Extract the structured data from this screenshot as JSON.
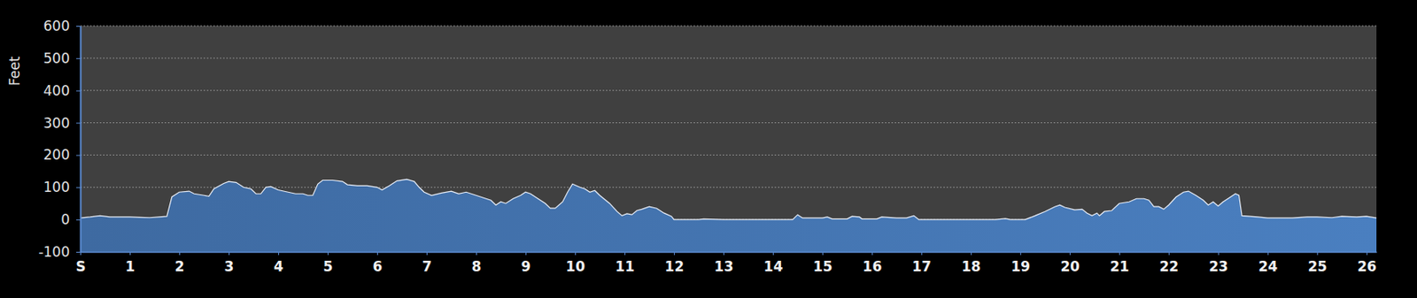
{
  "chart_data": {
    "type": "area",
    "y_label": "Feet",
    "color": "#4a7fc0",
    "grid": true,
    "xlim": [
      0,
      26.2
    ],
    "ylim": [
      -100,
      600
    ],
    "xticks": [
      {
        "value": 0,
        "label": "S"
      },
      1,
      2,
      3,
      4,
      5,
      6,
      7,
      8,
      9,
      10,
      11,
      12,
      13,
      14,
      15,
      16,
      17,
      18,
      19,
      20,
      21,
      22,
      23,
      24,
      25,
      26
    ],
    "yticks": [
      -100,
      0,
      100,
      200,
      300,
      400,
      500,
      600
    ],
    "x": [
      0,
      0.2,
      0.4,
      0.6,
      0.8,
      1.0,
      1.2,
      1.4,
      1.6,
      1.75,
      1.85,
      2.0,
      2.2,
      2.3,
      2.5,
      2.6,
      2.7,
      2.9,
      3.0,
      3.15,
      3.3,
      3.45,
      3.55,
      3.65,
      3.75,
      3.85,
      4.0,
      4.2,
      4.35,
      4.5,
      4.6,
      4.7,
      4.8,
      4.9,
      5.1,
      5.3,
      5.4,
      5.6,
      5.8,
      6.0,
      6.1,
      6.25,
      6.4,
      6.6,
      6.75,
      6.85,
      6.95,
      7.1,
      7.3,
      7.5,
      7.65,
      7.8,
      8.0,
      8.2,
      8.3,
      8.4,
      8.5,
      8.6,
      8.75,
      8.9,
      9.0,
      9.1,
      9.25,
      9.4,
      9.5,
      9.6,
      9.75,
      9.85,
      9.95,
      10.1,
      10.2,
      10.3,
      10.4,
      10.5,
      10.7,
      10.85,
      10.95,
      11.05,
      11.15,
      11.25,
      11.35,
      11.5,
      11.65,
      11.8,
      11.95,
      12.0,
      12.5,
      12.6,
      13.0,
      13.5,
      14.4,
      14.5,
      14.6,
      14.8,
      15.0,
      15.1,
      15.2,
      15.5,
      15.6,
      15.75,
      15.8,
      16.1,
      16.2,
      16.5,
      16.7,
      16.85,
      16.95,
      18.0,
      18.5,
      18.7,
      18.8,
      19.1,
      19.3,
      19.5,
      19.7,
      19.8,
      19.9,
      20.1,
      20.25,
      20.35,
      20.45,
      20.55,
      20.6,
      20.7,
      20.85,
      21.0,
      21.2,
      21.35,
      21.5,
      21.6,
      21.7,
      21.8,
      21.9,
      22.0,
      22.15,
      22.3,
      22.4,
      22.55,
      22.7,
      22.8,
      22.9,
      23.0,
      23.1,
      23.2,
      23.35,
      23.42,
      23.48,
      23.8,
      24.0,
      24.5,
      24.8,
      25.0,
      25.3,
      25.5,
      25.8,
      26.0,
      26.2
    ],
    "values": [
      5,
      8,
      12,
      8,
      8,
      8,
      7,
      6,
      8,
      10,
      70,
      85,
      88,
      80,
      75,
      72,
      95,
      112,
      118,
      115,
      100,
      95,
      80,
      80,
      100,
      102,
      92,
      85,
      80,
      80,
      75,
      75,
      110,
      122,
      122,
      118,
      108,
      105,
      105,
      100,
      92,
      105,
      120,
      125,
      118,
      100,
      85,
      75,
      82,
      88,
      80,
      85,
      75,
      65,
      60,
      45,
      55,
      50,
      65,
      75,
      85,
      80,
      65,
      50,
      35,
      35,
      55,
      85,
      110,
      100,
      95,
      85,
      90,
      75,
      50,
      25,
      12,
      18,
      15,
      28,
      32,
      40,
      35,
      20,
      10,
      0,
      0,
      2,
      0,
      0,
      0,
      15,
      5,
      5,
      5,
      8,
      2,
      2,
      10,
      8,
      2,
      2,
      8,
      5,
      5,
      12,
      0,
      0,
      0,
      3,
      0,
      0,
      12,
      25,
      40,
      45,
      38,
      30,
      32,
      20,
      12,
      20,
      12,
      25,
      28,
      50,
      55,
      65,
      65,
      60,
      40,
      40,
      32,
      45,
      70,
      85,
      88,
      75,
      60,
      45,
      55,
      42,
      55,
      65,
      80,
      75,
      12,
      8,
      5,
      5,
      8,
      8,
      6,
      10,
      8,
      10,
      5
    ]
  }
}
